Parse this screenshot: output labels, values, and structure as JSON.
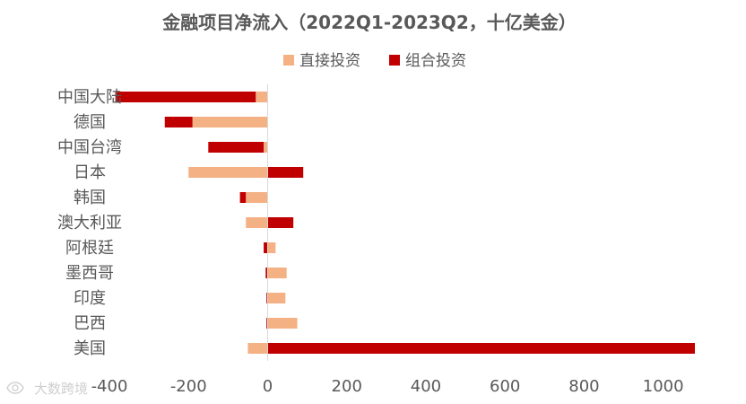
{
  "chart_data": {
    "type": "bar",
    "orientation": "horizontal",
    "stacked": true,
    "title": "金融项目净流入（2022Q1-2023Q2，十亿美金）",
    "categories": [
      "中国大陆",
      "德国",
      "中国台湾",
      "日本",
      "韩国",
      "澳大利亚",
      "阿根廷",
      "墨西哥",
      "印度",
      "巴西",
      "美国"
    ],
    "series": [
      {
        "name": "直接投资",
        "color": "#F4B183",
        "values": [
          -30,
          -190,
          -10,
          -200,
          -55,
          -55,
          20,
          48,
          45,
          75,
          -50
        ]
      },
      {
        "name": "组合投资",
        "color": "#C00000",
        "values": [
          -355,
          -70,
          -140,
          90,
          -15,
          65,
          -10,
          -5,
          -3,
          -3,
          1080
        ]
      }
    ],
    "xlim": [
      -400,
      1080
    ],
    "xticks": [
      -400,
      -200,
      0,
      200,
      400,
      600,
      800,
      1000
    ],
    "xtick_labels": [
      "-400",
      "-200",
      "0",
      "200",
      "400",
      "600",
      "800",
      "1000"
    ],
    "grid": false,
    "legend_position": "top"
  },
  "watermark": {
    "icon": "eye-logo-icon",
    "text": "大数跨境"
  }
}
